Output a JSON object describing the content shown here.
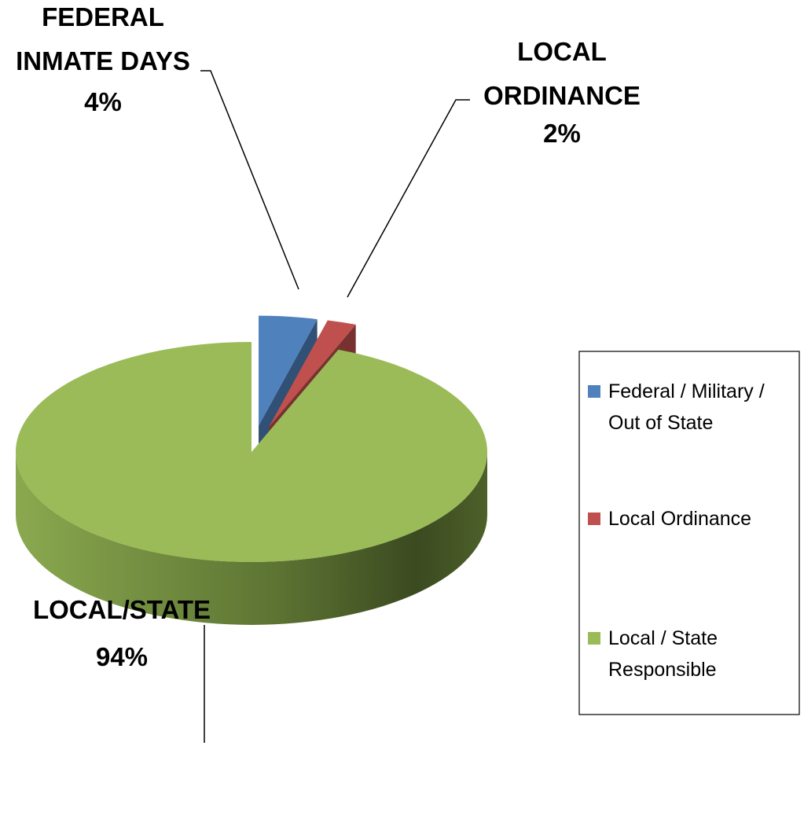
{
  "chart_data": {
    "type": "pie",
    "categories": [
      "Federal / Military / Out of State",
      "Local Ordinance",
      "Local / State Responsible"
    ],
    "values": [
      4,
      2,
      94
    ],
    "value_labels": [
      "4%",
      "2%",
      "94%"
    ],
    "data_labels": [
      "FEDERAL INMATE DAYS",
      "LOCAL ORDINANCE",
      "LOCAL/STATE"
    ],
    "colors": [
      "#4f81bd",
      "#c0504d",
      "#9bbb59"
    ],
    "legend": "right"
  }
}
